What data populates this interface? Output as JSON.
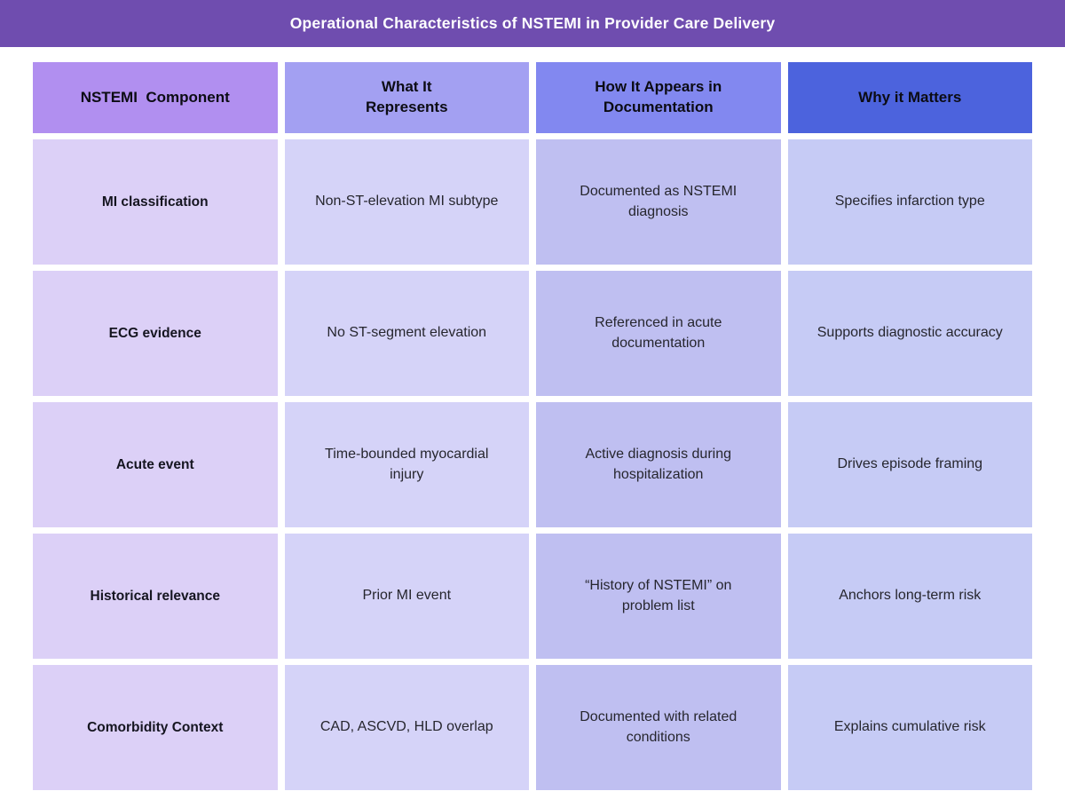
{
  "title_bar": {
    "title": "Operational Characteristics of NSTEMI in Provider Care Delivery",
    "bg": "#6F4DAF",
    "text_color": "#FFFFFF"
  },
  "colors": {
    "page_bg": "#FFFFFF",
    "header_col1": "#B18FF0",
    "header_col2": "#A3A0F2",
    "header_col3": "#8288F0",
    "header_col4": "#4C63DD",
    "body_col1": "#DCD0F7",
    "body_col2": "#D5D3F8",
    "body_col3": "#BFBFF1",
    "body_col4": "#C6CBF5"
  },
  "table": {
    "headers": [
      {
        "label": "NSTEMI  Component",
        "bg": "#B18FF0"
      },
      {
        "label": "What It\nRepresents",
        "bg": "#A3A0F2"
      },
      {
        "label": "How It Appears in\nDocumentation",
        "bg": "#8288F0"
      },
      {
        "label": "Why it Matters",
        "bg": "#4C63DD"
      }
    ],
    "rows": [
      {
        "cells": [
          "MI classification",
          "Non-ST-elevation MI subtype",
          "Documented as NSTEMI\ndiagnosis",
          "Specifies infarction type"
        ]
      },
      {
        "cells": [
          "ECG evidence",
          "No ST-segment elevation",
          "Referenced in acute\ndocumentation",
          "Supports diagnostic accuracy"
        ]
      },
      {
        "cells": [
          "Acute event",
          "Time-bounded myocardial\ninjury",
          "Active diagnosis during\nhospitalization",
          "Drives episode framing"
        ]
      },
      {
        "cells": [
          "Historical relevance",
          "Prior MI event",
          "“History of NSTEMI” on\nproblem list",
          "Anchors long-term risk"
        ]
      },
      {
        "cells": [
          "Comorbidity Context",
          "CAD, ASCVD, HLD overlap",
          "Documented with related\nconditions",
          "Explains cumulative risk"
        ]
      }
    ]
  },
  "chart_data": {
    "type": "table",
    "title": "Operational Characteristics of NSTEMI in Provider Care Delivery",
    "columns": [
      "NSTEMI Component",
      "What It Represents",
      "How It Appears in Documentation",
      "Why it Matters"
    ],
    "rows": [
      [
        "MI classification",
        "Non-ST-elevation MI subtype",
        "Documented as NSTEMI diagnosis",
        "Specifies infarction type"
      ],
      [
        "ECG evidence",
        "No ST-segment elevation",
        "Referenced in acute documentation",
        "Supports diagnostic accuracy"
      ],
      [
        "Acute event",
        "Time-bounded myocardial injury",
        "Active diagnosis during hospitalization",
        "Drives episode framing"
      ],
      [
        "Historical relevance",
        "Prior MI event",
        "“History of NSTEMI” on problem list",
        "Anchors long-term risk"
      ],
      [
        "Comorbidity Context",
        "CAD, ASCVD, HLD overlap",
        "Documented with related conditions",
        "Explains cumulative risk"
      ]
    ],
    "legend_position": "none",
    "grid": false
  }
}
